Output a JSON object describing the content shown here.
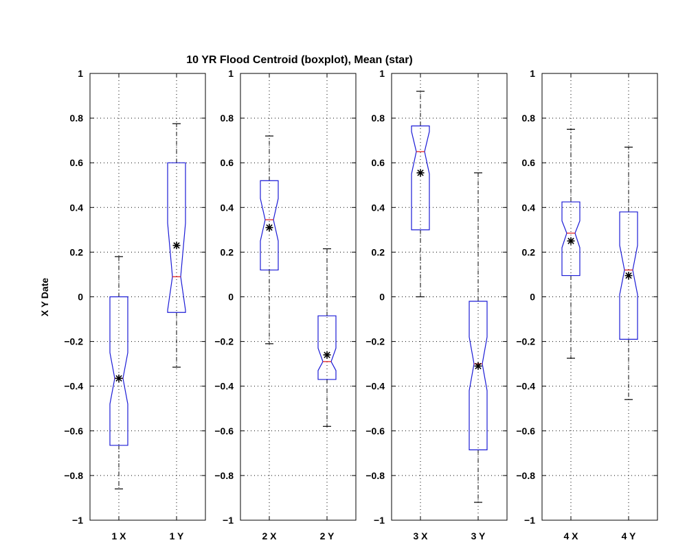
{
  "chart_data": {
    "type": "boxplot",
    "title": "10 YR Flood Centroid (boxplot), Mean (star)",
    "ylabel": "X Y Date",
    "ylim": [
      -1,
      1
    ],
    "yticks": [
      "1",
      "0.8",
      "0.6",
      "0.4",
      "0.2",
      "0",
      "−0.2",
      "−0.4",
      "−0.6",
      "−0.8",
      "−1"
    ],
    "grid": true,
    "panels": [
      {
        "boxes": [
          {
            "label": "1 X",
            "min": -0.86,
            "q1": -0.665,
            "median": -0.365,
            "q3": 0.0,
            "max": 0.18,
            "notch_low": -0.48,
            "notch_high": -0.25,
            "mean": -0.365
          },
          {
            "label": "1 Y",
            "min": -0.315,
            "q1": -0.07,
            "median": 0.09,
            "q3": 0.6,
            "max": 0.775,
            "notch_low": -0.06,
            "notch_high": 0.33,
            "mean": 0.23
          }
        ]
      },
      {
        "boxes": [
          {
            "label": "2 X",
            "min": -0.21,
            "q1": 0.12,
            "median": 0.345,
            "q3": 0.52,
            "max": 0.72,
            "notch_low": 0.25,
            "notch_high": 0.44,
            "mean": 0.31
          },
          {
            "label": "2 Y",
            "min": -0.58,
            "q1": -0.37,
            "median": -0.29,
            "q3": -0.085,
            "max": 0.215,
            "notch_low": -0.33,
            "notch_high": -0.23,
            "mean": -0.26
          }
        ]
      },
      {
        "boxes": [
          {
            "label": "3 X",
            "min": 0.0,
            "q1": 0.3,
            "median": 0.65,
            "q3": 0.765,
            "max": 0.92,
            "notch_low": 0.55,
            "notch_high": 0.74,
            "mean": 0.555
          },
          {
            "label": "3 Y",
            "min": -0.92,
            "q1": -0.685,
            "median": -0.3,
            "q3": -0.02,
            "max": 0.555,
            "notch_low": -0.42,
            "notch_high": -0.18,
            "mean": -0.31
          }
        ]
      },
      {
        "boxes": [
          {
            "label": "4 X",
            "min": -0.275,
            "q1": 0.095,
            "median": 0.285,
            "q3": 0.425,
            "max": 0.75,
            "notch_low": 0.22,
            "notch_high": 0.34,
            "mean": 0.25
          },
          {
            "label": "4 Y",
            "min": -0.46,
            "q1": -0.19,
            "median": 0.12,
            "q3": 0.38,
            "max": 0.67,
            "notch_low": 0.01,
            "notch_high": 0.23,
            "mean": 0.095
          }
        ]
      }
    ]
  }
}
